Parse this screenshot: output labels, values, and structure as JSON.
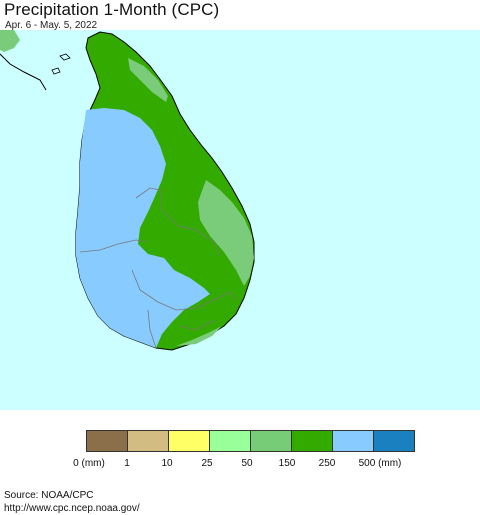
{
  "header": {
    "title": "Precipitation 1-Month (CPC)",
    "subtitle": "Apr. 6 - May. 5, 2022"
  },
  "map": {
    "ocean_color": "#ccffff",
    "region": "Sri Lanka",
    "zones": [
      {
        "category": "150-250",
        "color": "#33aa00"
      },
      {
        "category": "50-150",
        "color": "#7acc7a"
      },
      {
        "category": "250-500",
        "color": "#88ccff"
      }
    ]
  },
  "legend": {
    "swatches": [
      {
        "color": "#8b6e4a"
      },
      {
        "color": "#d2bc82"
      },
      {
        "color": "#ffff66"
      },
      {
        "color": "#99ff99"
      },
      {
        "color": "#77cc77"
      },
      {
        "color": "#33aa00"
      },
      {
        "color": "#88ccff"
      },
      {
        "color": "#1a80c0"
      }
    ],
    "labels": [
      "0 (mm)",
      "1",
      "10",
      "25",
      "50",
      "150",
      "250",
      "500 (mm)"
    ]
  },
  "footer": {
    "source_line": "Source: NOAA/CPC",
    "url_line": "http://www.cpc.ncep.noaa.gov/"
  }
}
